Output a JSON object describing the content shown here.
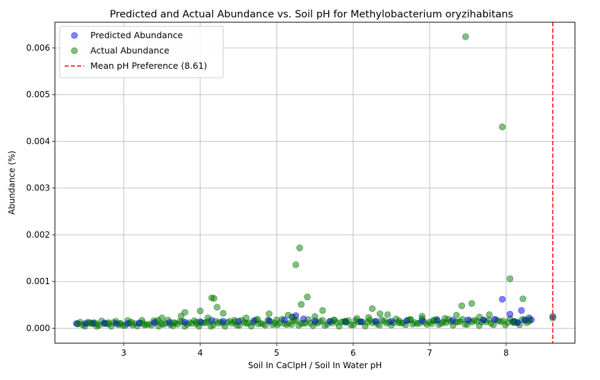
{
  "chart_data": {
    "type": "scatter",
    "title": "Predicted and Actual Abundance vs. Soil pH for Methylobacterium oryzihabitans",
    "xlabel": "Soil In CaClpH / Soil In Water pH",
    "ylabel": "Abundance (%)",
    "xlim": [
      2.1,
      8.9
    ],
    "ylim": [
      -0.00032,
      0.00655
    ],
    "grid": true,
    "legend_position": "top-left",
    "xticks": [
      3,
      4,
      5,
      6,
      7,
      8
    ],
    "xtick_labels": [
      "3",
      "4",
      "5",
      "6",
      "7",
      "8"
    ],
    "yticks": [
      0,
      0.001,
      0.002,
      0.003,
      0.004,
      0.005,
      0.006
    ],
    "ytick_labels": [
      "0.000",
      "0.001",
      "0.002",
      "0.003",
      "0.004",
      "0.005",
      "0.006"
    ],
    "series": [
      {
        "name": "Predicted Abundance",
        "color": "#0000ff",
        "marker": "circle",
        "x": [
          2.38,
          2.5,
          2.6,
          2.75,
          2.9,
          3.05,
          3.2,
          3.4,
          3.6,
          3.8,
          4.0,
          4.15,
          4.3,
          4.5,
          4.7,
          4.9,
          5.1,
          5.2,
          5.25,
          5.35,
          5.5,
          5.7,
          5.9,
          6.1,
          6.3,
          6.5,
          6.7,
          6.9,
          7.1,
          7.3,
          7.5,
          7.7,
          7.85,
          7.95,
          8.05,
          8.1,
          8.15,
          8.2,
          8.25,
          8.3,
          8.33,
          8.61
        ],
        "y": [
          0.0001,
          0.0001,
          0.00011,
          0.00011,
          0.0001,
          0.0001,
          0.00011,
          0.00012,
          0.00012,
          0.00013,
          0.00014,
          0.00017,
          0.00015,
          0.00015,
          0.00016,
          0.00016,
          0.00018,
          0.00024,
          0.00027,
          0.0002,
          0.00016,
          0.00015,
          0.00014,
          0.00014,
          0.00015,
          0.00015,
          0.00016,
          0.00016,
          0.00017,
          0.00017,
          0.00018,
          0.00018,
          0.00019,
          0.00062,
          0.0003,
          0.00014,
          0.00012,
          0.00038,
          0.00017,
          0.00022,
          0.00018,
          0.00025
        ]
      },
      {
        "name": "Actual Abundance",
        "color": "#008000",
        "marker": "circle",
        "x": [
          2.4,
          2.55,
          2.65,
          2.8,
          2.95,
          3.1,
          3.25,
          3.45,
          3.5,
          3.65,
          3.75,
          3.8,
          3.95,
          4.0,
          4.1,
          4.15,
          4.18,
          4.22,
          4.3,
          4.45,
          4.6,
          4.75,
          4.9,
          5.0,
          5.15,
          5.22,
          5.25,
          5.3,
          5.32,
          5.4,
          5.5,
          5.6,
          5.75,
          5.9,
          6.05,
          6.2,
          6.25,
          6.35,
          6.45,
          6.6,
          6.75,
          6.9,
          7.05,
          7.2,
          7.35,
          7.42,
          7.47,
          7.55,
          7.65,
          7.78,
          7.95,
          8.05,
          8.1,
          8.22,
          8.3,
          8.61
        ],
        "y": [
          0.0001,
          0.00011,
          9e-05,
          0.00012,
          0.0001,
          0.00013,
          0.00011,
          0.00017,
          0.00022,
          0.00012,
          0.00026,
          0.00034,
          0.00013,
          0.00037,
          0.00022,
          0.00065,
          0.00064,
          0.00045,
          0.00032,
          0.00017,
          0.00022,
          0.00019,
          0.00031,
          0.00018,
          0.00028,
          0.00023,
          0.00136,
          0.00172,
          0.00051,
          0.00067,
          0.00025,
          0.00038,
          0.00018,
          0.00015,
          0.00021,
          0.00023,
          0.00042,
          0.00031,
          0.00029,
          0.00016,
          0.00019,
          0.00026,
          0.00017,
          0.00021,
          0.00028,
          0.00048,
          0.00624,
          0.00053,
          0.00024,
          0.00029,
          0.00431,
          0.00106,
          0.00012,
          0.00063,
          0.00018,
          0.00022
        ]
      }
    ],
    "reference_lines": [
      {
        "orientation": "vertical",
        "x": 8.61,
        "color": "#ff0000",
        "style": "dashed",
        "label": "Mean pH Preference (8.61)"
      }
    ]
  }
}
